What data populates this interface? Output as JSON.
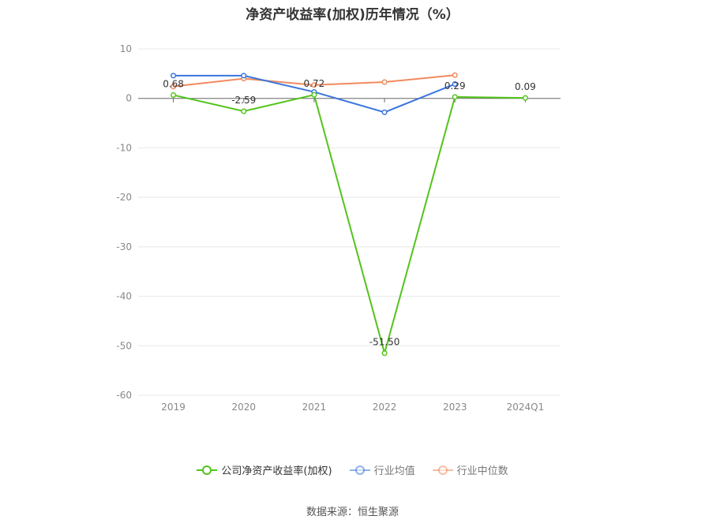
{
  "chart_data": {
    "type": "line",
    "title": "净资产收益率(加权)历年情况（%）",
    "categories": [
      "2019",
      "2020",
      "2021",
      "2022",
      "2023",
      "2024Q1"
    ],
    "ylim": [
      -60,
      10
    ],
    "yticks": [
      "10",
      "0",
      "-10",
      "-20",
      "-30",
      "-40",
      "-50",
      "-60"
    ],
    "grid": true,
    "legend_position": "bottom",
    "series": [
      {
        "name": "公司净资产收益率(加权)",
        "color": "#52c41a",
        "values": [
          0.68,
          -2.59,
          0.72,
          -51.5,
          0.29,
          0.09
        ],
        "labels": [
          "0.68",
          "-2.59",
          "0.72",
          "-51.50",
          "0.29",
          "0.09"
        ]
      },
      {
        "name": "行业均值",
        "color": "#3a75dd",
        "values": [
          4.6,
          4.6,
          1.3,
          -2.8,
          2.9,
          null
        ]
      },
      {
        "name": "行业中位数",
        "color": "#f08a5d",
        "values": [
          2.4,
          4.0,
          2.7,
          3.3,
          4.7,
          null
        ]
      }
    ]
  },
  "source_text": "数据来源：恒生聚源"
}
